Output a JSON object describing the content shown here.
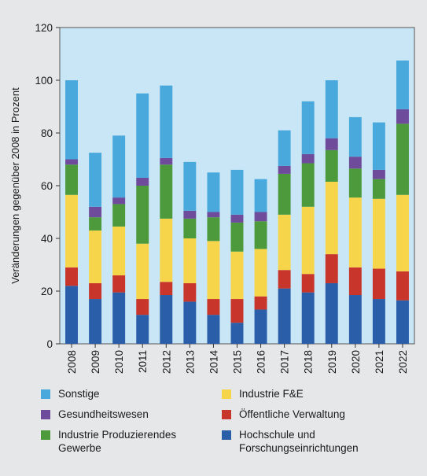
{
  "chart_data": {
    "type": "bar",
    "stacked": true,
    "ylabel": "Veränderungen gegenüber 2008 in Prozent",
    "xlabel": "",
    "ylim": [
      0,
      120
    ],
    "yticks": [
      0,
      20,
      40,
      60,
      80,
      100,
      120
    ],
    "grid": false,
    "legend_position": "bottom",
    "plot_background": "#c9e6f6",
    "categories": [
      "2008",
      "2009",
      "2010",
      "2011",
      "2012",
      "2013",
      "2014",
      "2015",
      "2016",
      "2017",
      "2018",
      "2019",
      "2020",
      "2021",
      "2022"
    ],
    "series": [
      {
        "name": "Hochschule und Forschungseinrichtungen",
        "color": "#2a5ea8",
        "values": [
          22,
          17,
          19.5,
          11,
          18.5,
          16,
          11,
          8,
          13,
          21,
          19.5,
          23,
          18.5,
          17,
          16.5
        ]
      },
      {
        "name": "Öffentliche Verwaltung",
        "color": "#c8352a",
        "values": [
          7,
          6,
          6.5,
          6,
          5,
          7,
          6,
          9,
          5,
          7,
          7,
          11,
          10.5,
          11.5,
          11
        ]
      },
      {
        "name": "Industrie F&E",
        "color": "#f7d54a",
        "values": [
          27.5,
          20,
          18.5,
          21,
          24,
          17,
          22,
          18,
          18,
          21,
          25.5,
          27.5,
          26.5,
          26.5,
          29
        ]
      },
      {
        "name": "Industrie Produzierendes Gewerbe",
        "color": "#4c9a3c",
        "values": [
          11.5,
          5,
          8.5,
          22,
          20.5,
          7.5,
          9,
          11,
          10.5,
          15.5,
          16.5,
          12,
          11,
          7.5,
          27
        ]
      },
      {
        "name": "Gesundheitswesen",
        "color": "#6f4b9b",
        "values": [
          2,
          4,
          2.5,
          3,
          2.5,
          3,
          2,
          3,
          3.5,
          3,
          3.5,
          4.5,
          4.5,
          3.5,
          5.5
        ]
      },
      {
        "name": "Sonstige",
        "color": "#4aa9dc",
        "values": [
          30,
          20.5,
          23.5,
          32,
          27.5,
          18.5,
          15,
          17,
          12.5,
          13.5,
          20,
          22,
          15,
          18,
          18.5
        ]
      }
    ]
  },
  "legend": {
    "items": [
      {
        "label": "Sonstige",
        "color": "#4aa9dc"
      },
      {
        "label": "Industrie F&E",
        "color": "#f7d54a"
      },
      {
        "label": "Gesundheitswesen",
        "color": "#6f4b9b"
      },
      {
        "label": "Öffentliche Verwaltung",
        "color": "#c8352a"
      },
      {
        "label": "Industrie Produzierendes\nGewerbe",
        "color": "#4c9a3c"
      },
      {
        "label": "Hochschule und\nForschungseinrichtungen",
        "color": "#2a5ea8"
      }
    ]
  }
}
